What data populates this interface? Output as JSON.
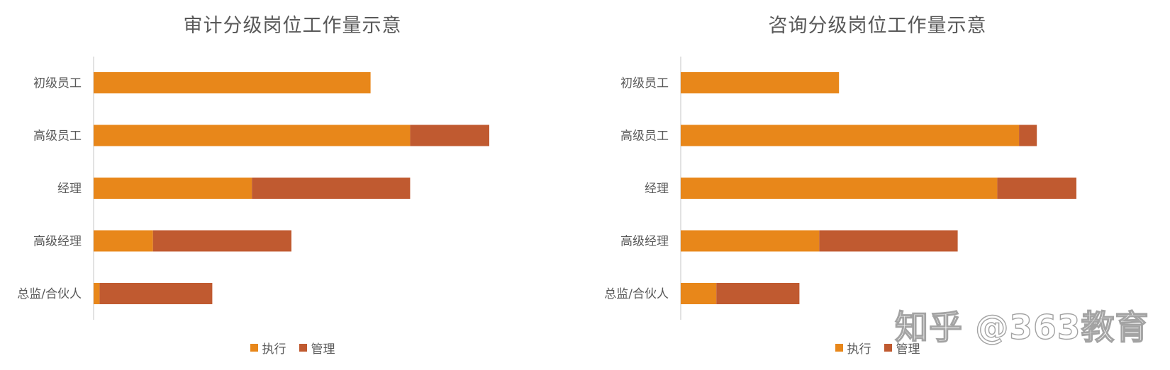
{
  "colors": {
    "execution": "#E8871A",
    "management": "#C05A30",
    "axis": "#d9d9d9"
  },
  "chart_data": [
    {
      "type": "bar",
      "orientation": "horizontal",
      "stacked": true,
      "title": "审计分级岗位工作量示意",
      "categories": [
        "初级员工",
        "高级员工",
        "经理",
        "高级经理",
        "总监/合伙人"
      ],
      "series": [
        {
          "name": "执行",
          "values": [
            70,
            80,
            40,
            15,
            1.5
          ]
        },
        {
          "name": "管理",
          "values": [
            0,
            20,
            40,
            35,
            28.5
          ]
        }
      ],
      "xlim": [
        0,
        100
      ],
      "legend": "bottom",
      "grid": false
    },
    {
      "type": "bar",
      "orientation": "horizontal",
      "stacked": true,
      "title": "咨询分级岗位工作量示意",
      "categories": [
        "初级员工",
        "高级员工",
        "经理",
        "高级经理",
        "总监/合伙人"
      ],
      "series": [
        {
          "name": "执行",
          "values": [
            40,
            85.5,
            80,
            35,
            9
          ]
        },
        {
          "name": "管理",
          "values": [
            0,
            4.5,
            20,
            35,
            21
          ]
        }
      ],
      "xlim": [
        0,
        100
      ],
      "legend": "bottom",
      "grid": false
    }
  ],
  "watermark": "知乎 @363教育"
}
